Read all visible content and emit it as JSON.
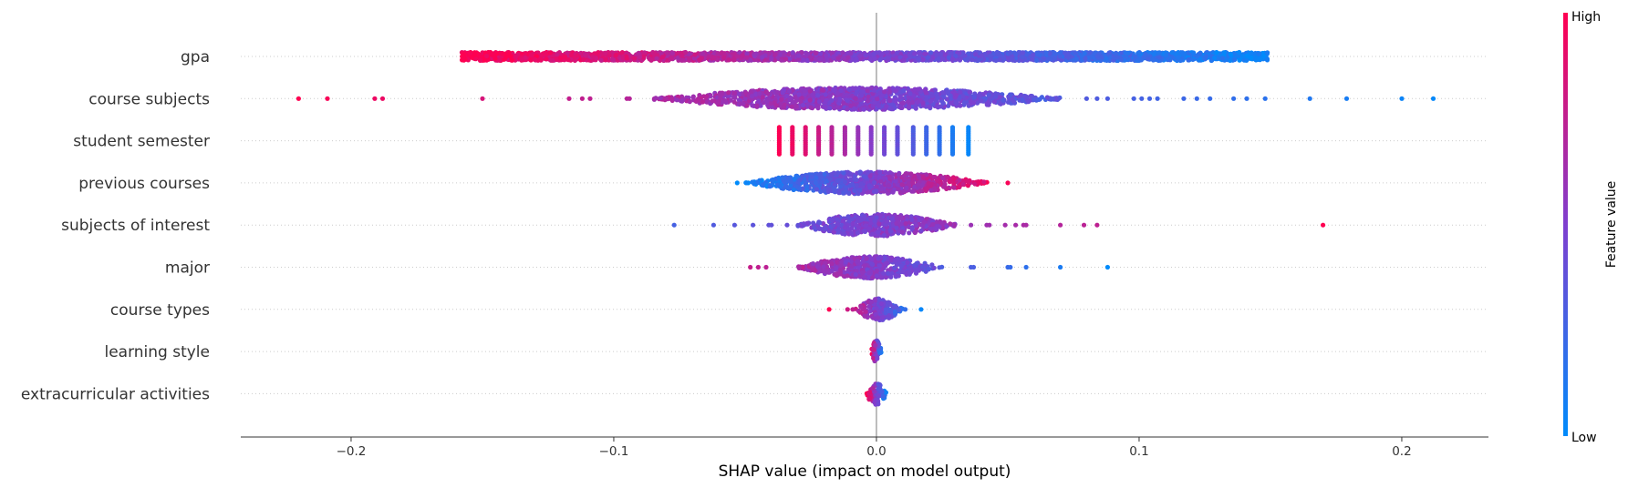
{
  "chart_data": {
    "type": "scatter",
    "subtype": "shap-beeswarm",
    "title": "",
    "xlabel": "SHAP value (impact on model output)",
    "xlim": [
      -0.242,
      0.233
    ],
    "xticks": [
      -0.2,
      -0.1,
      0.0,
      0.1,
      0.2
    ],
    "xtick_labels": [
      "−0.2",
      "−0.1",
      "0.0",
      "0.1",
      "0.2"
    ],
    "grid": false,
    "zero_line": true,
    "features": [
      {
        "name": "gpa",
        "min": -0.158,
        "max": 0.149,
        "dense_ranges": [
          [
            -0.158,
            0.149
          ]
        ],
        "outliers": [],
        "color_trend": "high_negative",
        "point_values": [
          -0.158,
          -0.15,
          -0.12,
          -0.1,
          -0.08,
          -0.06,
          -0.04,
          -0.02,
          0.0,
          0.02,
          0.04,
          0.06,
          0.08,
          0.1,
          0.12,
          0.14,
          0.149
        ]
      },
      {
        "name": "course subjects",
        "min": -0.22,
        "max": 0.212,
        "dense_ranges": [
          [
            -0.085,
            0.07
          ]
        ],
        "outliers": [
          -0.22,
          -0.209,
          -0.191,
          -0.188,
          -0.15,
          -0.117,
          -0.112,
          -0.109,
          -0.095,
          -0.094,
          0.08,
          0.084,
          0.088,
          0.098,
          0.101,
          0.104,
          0.107,
          0.117,
          0.122,
          0.127,
          0.136,
          0.141,
          0.148,
          0.165,
          0.179,
          0.2,
          0.212
        ],
        "color_trend": "high_negative"
      },
      {
        "name": "student semester",
        "min": -0.037,
        "max": 0.035,
        "stripes": [
          -0.037,
          -0.032,
          -0.027,
          -0.022,
          -0.017,
          -0.012,
          -0.007,
          -0.002,
          0.003,
          0.008,
          0.014,
          0.019,
          0.024,
          0.029,
          0.035
        ],
        "color_trend": "high_negative"
      },
      {
        "name": "previous courses",
        "min": -0.053,
        "max": 0.05,
        "dense_ranges": [
          [
            -0.05,
            0.043
          ]
        ],
        "outliers": [
          -0.053,
          0.05
        ],
        "color_trend": "high_positive"
      },
      {
        "name": "subjects of interest",
        "min": -0.077,
        "max": 0.17,
        "dense_ranges": [
          [
            -0.03,
            0.03
          ]
        ],
        "outliers": [
          -0.077,
          -0.062,
          -0.054,
          -0.047,
          -0.041,
          -0.04,
          -0.034,
          0.036,
          0.042,
          0.043,
          0.049,
          0.053,
          0.056,
          0.057,
          0.07,
          0.079,
          0.084,
          0.17
        ],
        "color_trend": "high_positive"
      },
      {
        "name": "major",
        "min": -0.048,
        "max": 0.088,
        "dense_ranges": [
          [
            -0.03,
            0.025
          ]
        ],
        "outliers": [
          -0.048,
          -0.045,
          -0.042,
          0.036,
          0.037,
          0.05,
          0.051,
          0.057,
          0.07,
          0.088
        ],
        "color_trend": "high_negative"
      },
      {
        "name": "course types",
        "min": -0.018,
        "max": 0.017,
        "dense_ranges": [
          [
            -0.008,
            0.01
          ]
        ],
        "outliers": [
          -0.018,
          -0.011,
          -0.009,
          0.011,
          0.017
        ],
        "color_trend": "high_negative"
      },
      {
        "name": "learning style",
        "min": -0.002,
        "max": 0.002,
        "dense_ranges": [
          [
            -0.002,
            0.002
          ]
        ],
        "outliers": [],
        "color_trend": "high_negative"
      },
      {
        "name": "extracurricular activities",
        "min": -0.004,
        "max": 0.004,
        "dense_ranges": [
          [
            -0.004,
            0.004
          ]
        ],
        "outliers": [],
        "color_trend": "high_negative"
      }
    ],
    "colorbar": {
      "label": "Feature value",
      "high_label": "High",
      "low_label": "Low",
      "high_color": "#ff0051",
      "mid_color": "#7f3fcf",
      "low_color": "#008bfb"
    }
  }
}
